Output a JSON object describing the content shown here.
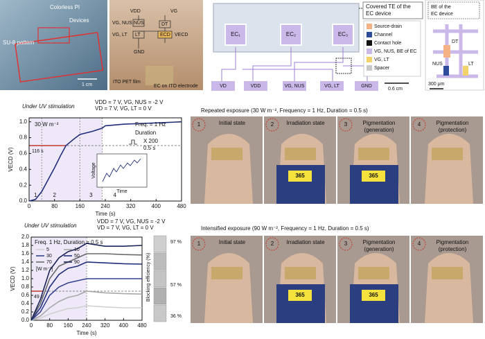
{
  "photo_a": {
    "colorless_pi": "Colorless PI",
    "devices": "Devices",
    "su8": "SU-8 pattern",
    "scale": "1 cm"
  },
  "photo_b": {
    "vdd": "VDD",
    "vg": "VG",
    "vg_nus": "VG, NUS",
    "nus": "NUS",
    "vg_lt": "VG, LT",
    "lt": "LT",
    "dt": "DT",
    "ecd": "ECD",
    "vecd": "VECD",
    "gnd": "GND",
    "film": "ITO PET film",
    "ec": "EC on ITO electrode"
  },
  "schematic": {
    "covered_te": [
      "Covered TE of the",
      "EC device"
    ],
    "ec": [
      "EC₁",
      "EC₂",
      "EC₃"
    ],
    "legend": [
      "Source-drain",
      "Channel",
      "Contact hole",
      "VG, NUS, BE of EC",
      "VG, LT",
      "Spacer"
    ],
    "legend_colors": [
      "#f4b183",
      "#2e4a9b",
      "#111111",
      "#c9b8e8",
      "#f2d36b",
      "#c8c8c8"
    ],
    "be_label": [
      "BE of the",
      "EC device"
    ],
    "inset_labels": [
      "DT",
      "NUS",
      "LT"
    ],
    "inset_scale": "300 μm",
    "pads": [
      "VD",
      "VDD",
      "VG, NUS",
      "VG, LT",
      "GND"
    ],
    "scale": "0.6 cm"
  },
  "chart_data": [
    {
      "type": "line",
      "title": "Under UV stimulation",
      "conditions": [
        "VDD = 7 V, VG, NUS = -2 V",
        "VD = 7 V, VG, LT = 0 V"
      ],
      "xlabel": "Time (s)",
      "ylabel": "VECD (V)",
      "x": [
        0,
        20,
        40,
        60,
        80,
        100,
        116,
        140,
        160,
        200,
        230,
        240,
        300,
        360,
        420,
        480
      ],
      "values": [
        0,
        0.02,
        0.12,
        0.27,
        0.42,
        0.58,
        0.7,
        0.78,
        0.84,
        0.88,
        0.92,
        0.95,
        0.97,
        0.98,
        0.99,
        1.0
      ],
      "color": "#1f2e7a",
      "xlim": [
        0,
        480
      ],
      "xticks": [
        0,
        80,
        160,
        240,
        320,
        400,
        480
      ],
      "ylim": [
        0,
        1.05
      ],
      "yticks": [
        {
          "value": 0,
          "label": "0.0"
        },
        0.2,
        0.4,
        0.6,
        0.8,
        {
          "value": 1,
          "label": "1.0"
        }
      ],
      "threshold": 0.7,
      "marker_x": 116,
      "marker_label": "116 s",
      "regions": [
        40,
        160,
        230
      ],
      "region_labels": [
        "1",
        "2",
        "3",
        "4"
      ],
      "notes": [
        "30 W m⁻²",
        "Freq. = 1 Hz",
        "Duration",
        "X 200",
        "0.5 s"
      ],
      "inset": {
        "ylabel": "Voltage",
        "xlabel": "Time"
      }
    },
    {
      "type": "line",
      "title": "Under UV stimulation",
      "conditions": [
        "VDD = 7 V, VG, NUS = -2 V",
        "VD = 7 V, VG, LT = 0 V"
      ],
      "xlabel": "Time (s)",
      "ylabel": "VECD (V)",
      "x": [
        0,
        40,
        80,
        120,
        160,
        200,
        240,
        320,
        400,
        480
      ],
      "series": [
        {
          "name": "5",
          "color": "#d0d0d0",
          "values": [
            0,
            0.05,
            0.15,
            0.22,
            0.28,
            0.3,
            0.35,
            0.32,
            0.3,
            0.3
          ]
        },
        {
          "name": "10",
          "color": "#a8a8a8",
          "values": [
            0,
            0.1,
            0.3,
            0.45,
            0.55,
            0.6,
            0.7,
            0.66,
            0.64,
            0.63
          ]
        },
        {
          "name": "30",
          "color": "#34448f",
          "values": [
            0,
            0.2,
            0.6,
            0.8,
            0.9,
            0.95,
            1.0,
            1.0,
            1.0,
            1.0
          ]
        },
        {
          "name": "50",
          "color": "#1f2e7a",
          "values": [
            0,
            0.3,
            0.8,
            1.1,
            1.25,
            1.3,
            1.4,
            1.38,
            1.36,
            1.35
          ]
        },
        {
          "name": "70",
          "color": "#6a6a6a",
          "values": [
            0,
            0.4,
            1.0,
            1.3,
            1.4,
            1.5,
            1.6,
            1.6,
            1.58,
            1.57
          ]
        },
        {
          "name": "90",
          "color": "#1a2456",
          "values": [
            0,
            0.5,
            1.2,
            1.5,
            1.65,
            1.72,
            1.85,
            1.78,
            1.78,
            1.8
          ]
        }
      ],
      "xlim": [
        0,
        480
      ],
      "xticks": [
        0,
        80,
        160,
        240,
        320,
        400,
        480
      ],
      "ylim": [
        0,
        2.0
      ],
      "yticks": [
        {
          "value": 0,
          "label": "0.0"
        },
        0.2,
        0.4,
        0.6,
        0.8,
        {
          "value": 1,
          "label": "1.0"
        },
        1.2,
        1.4,
        1.6,
        1.8,
        {
          "value": 2,
          "label": "2.0"
        }
      ],
      "threshold": 0.7,
      "marker_x": 49,
      "marker_label": "49 s",
      "stimulation_end": 240,
      "legend_title": "Freq. 1 Hz, Duration = 0.5 s",
      "legend_unit": "[W m⁻²]"
    }
  ],
  "blocking": {
    "label": "Blocking efficiency (%)",
    "labels": [
      "97 %",
      "57 %",
      "36 %"
    ]
  },
  "repeated": {
    "title": "Repeated exposure (30 W m⁻², Frequency = 1 Hz, Duration = 0.5 s)",
    "panels": [
      {
        "step": "1",
        "caption": [
          "Initial state"
        ]
      },
      {
        "step": "2",
        "caption": [
          "Irradiation state"
        ],
        "tag": "365"
      },
      {
        "step": "3",
        "caption": [
          "Pigmentation",
          "(generation)"
        ],
        "tag": "365"
      },
      {
        "step": "4",
        "caption": [
          "Pigmentation",
          "(protection)"
        ]
      }
    ]
  },
  "intensified": {
    "title": "Intensified exposure (90 W m⁻², Frequency = 1 Hz, Duration = 0.5 s)",
    "panels": [
      {
        "step": "1",
        "caption": [
          "Initial state"
        ]
      },
      {
        "step": "2",
        "caption": [
          "Irradiation state"
        ],
        "tag": "365"
      },
      {
        "step": "3",
        "caption": [
          "Pigmentation",
          "(generation)"
        ],
        "tag": "365"
      },
      {
        "step": "4",
        "caption": [
          "Pigmentation",
          "(protection)"
        ]
      }
    ]
  }
}
